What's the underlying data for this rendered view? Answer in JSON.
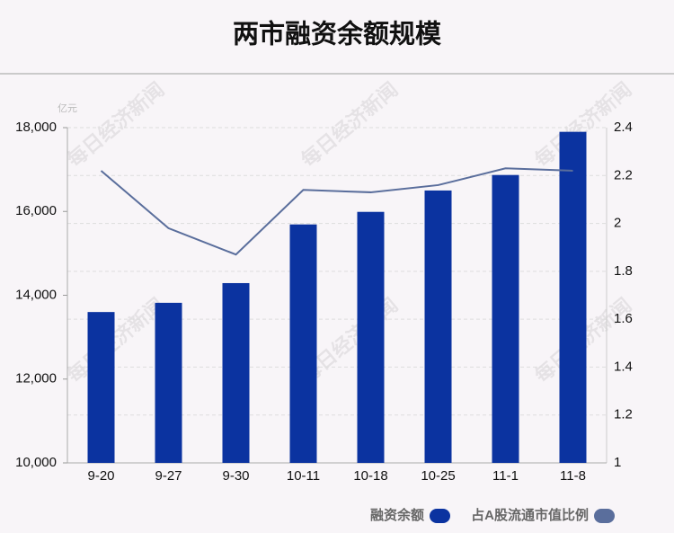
{
  "chart_data": {
    "type": "bar",
    "title": "两市融资余额规模",
    "unit": "亿元",
    "watermark": "每日经济新闻",
    "categories": [
      "9-20",
      "9-27",
      "9-30",
      "10-11",
      "10-18",
      "10-25",
      "11-1",
      "11-8"
    ],
    "series": [
      {
        "name": "融资余额",
        "type": "bar",
        "color": "#0b33a0",
        "values": [
          13600,
          13820,
          14290,
          15690,
          15990,
          16500,
          16870,
          17900
        ]
      },
      {
        "name": "占A股流通市值比例",
        "type": "line",
        "axis": "y2",
        "color": "#5a6e9c",
        "values": [
          2.22,
          1.98,
          1.87,
          2.14,
          2.13,
          2.16,
          2.23,
          2.22
        ]
      }
    ],
    "ylim": [
      10000,
      18000
    ],
    "yticks": [
      {
        "value": 10000,
        "label": "10,000"
      },
      {
        "value": 12000,
        "label": "12,000"
      },
      {
        "value": 14000,
        "label": "14,000"
      },
      {
        "value": 16000,
        "label": "16,000"
      },
      {
        "value": 18000,
        "label": "18,000"
      }
    ],
    "y2lim": [
      1,
      2.4
    ],
    "y2ticks": [
      1,
      1.2,
      1.4,
      1.6,
      1.8,
      2,
      2.2,
      2.4
    ],
    "grid": true
  }
}
